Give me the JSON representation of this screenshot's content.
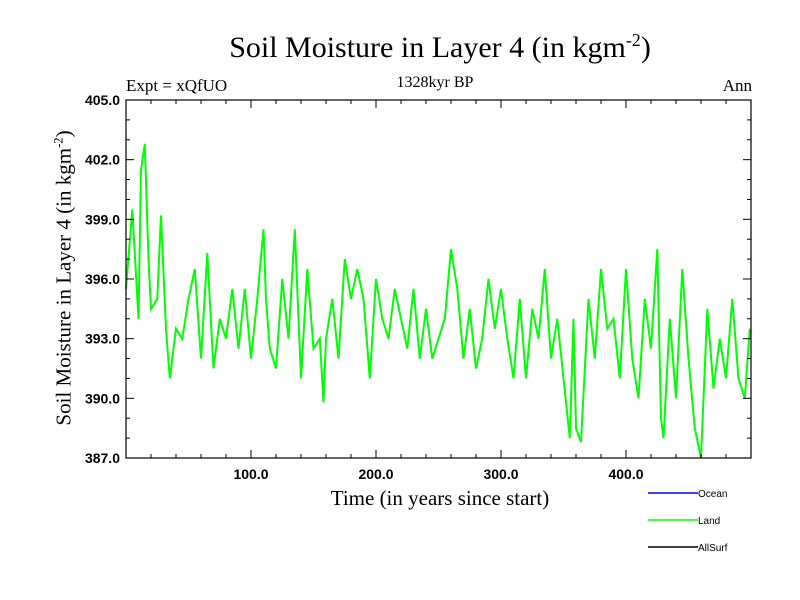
{
  "chart_data": {
    "type": "line",
    "title_main": "Soil Moisture in Layer 4 (in kgm",
    "title_sup": "-2",
    "title_end": ")",
    "subtitle": "1328kyr BP",
    "expt_label": "Expt = xQfUO",
    "season_label": "Ann",
    "xlabel": "Time (in years since start)",
    "ylabel_main": "Soil Moisture in Layer 4 (in kgm",
    "ylabel_sup": "-2",
    "ylabel_end": ")",
    "xlim": [
      0,
      500
    ],
    "ylim": [
      387.0,
      405.0
    ],
    "x_ticks": [
      100,
      200,
      300,
      400
    ],
    "x_tick_labels": [
      "100.0",
      "200.0",
      "300.0",
      "400.0"
    ],
    "y_ticks": [
      387,
      390,
      393,
      396,
      399,
      402,
      405
    ],
    "y_tick_labels": [
      "387.0",
      "390.0",
      "393.0",
      "396.0",
      "399.0",
      "402.0",
      "405.0"
    ],
    "legend": [
      {
        "name": "Ocean",
        "color": "#0000ff"
      },
      {
        "name": "Land",
        "color": "#00ff00"
      },
      {
        "name": "AllSurf",
        "color": "#000000"
      }
    ],
    "series": [
      {
        "name": "Land",
        "color": "#00ff00",
        "x": [
          0,
          5,
          10,
          12,
          15,
          18,
          20,
          25,
          28,
          32,
          35,
          40,
          45,
          50,
          55,
          60,
          65,
          70,
          75,
          80,
          85,
          90,
          95,
          100,
          105,
          110,
          112,
          115,
          120,
          125,
          130,
          135,
          140,
          145,
          150,
          155,
          158,
          160,
          165,
          170,
          175,
          180,
          185,
          190,
          195,
          200,
          205,
          210,
          215,
          220,
          225,
          230,
          235,
          240,
          245,
          250,
          255,
          260,
          265,
          270,
          275,
          280,
          285,
          290,
          295,
          300,
          305,
          310,
          315,
          320,
          325,
          330,
          335,
          340,
          345,
          350,
          355,
          358,
          360,
          364,
          370,
          375,
          380,
          385,
          390,
          395,
          400,
          405,
          410,
          415,
          420,
          425,
          428,
          430,
          435,
          440,
          445,
          450,
          455,
          460,
          465,
          470,
          475,
          480,
          485,
          490,
          495,
          499
        ],
        "values": [
          395.5,
          399.5,
          394.0,
          401.5,
          402.8,
          397.0,
          394.5,
          395.0,
          399.2,
          393.5,
          391.0,
          393.5,
          393.0,
          395.0,
          396.5,
          392.0,
          397.3,
          391.5,
          394.0,
          393.0,
          395.5,
          392.5,
          395.5,
          392.0,
          395.0,
          398.5,
          395.0,
          392.5,
          391.5,
          396.0,
          393.0,
          398.5,
          391.0,
          396.5,
          392.5,
          393.0,
          389.8,
          393.0,
          395.0,
          392.0,
          397.0,
          395.0,
          396.5,
          395.0,
          391.0,
          396.0,
          394.0,
          393.0,
          395.5,
          394.0,
          392.5,
          395.5,
          392.0,
          394.5,
          392.0,
          393.0,
          394.0,
          397.5,
          395.5,
          392.0,
          394.5,
          391.5,
          393.0,
          396.0,
          393.5,
          395.5,
          393.0,
          391.0,
          395.0,
          391.0,
          394.5,
          393.0,
          396.5,
          392.0,
          394.0,
          391.0,
          388.0,
          394.0,
          388.5,
          387.8,
          395.0,
          392.0,
          396.5,
          393.5,
          394.0,
          391.0,
          396.5,
          392.0,
          390.0,
          395.0,
          392.5,
          397.5,
          389.0,
          388.0,
          394.0,
          390.0,
          396.5,
          392.0,
          388.5,
          387.0,
          394.5,
          390.5,
          393.0,
          391.0,
          395.0,
          391.0,
          390.0,
          393.5
        ]
      }
    ]
  }
}
